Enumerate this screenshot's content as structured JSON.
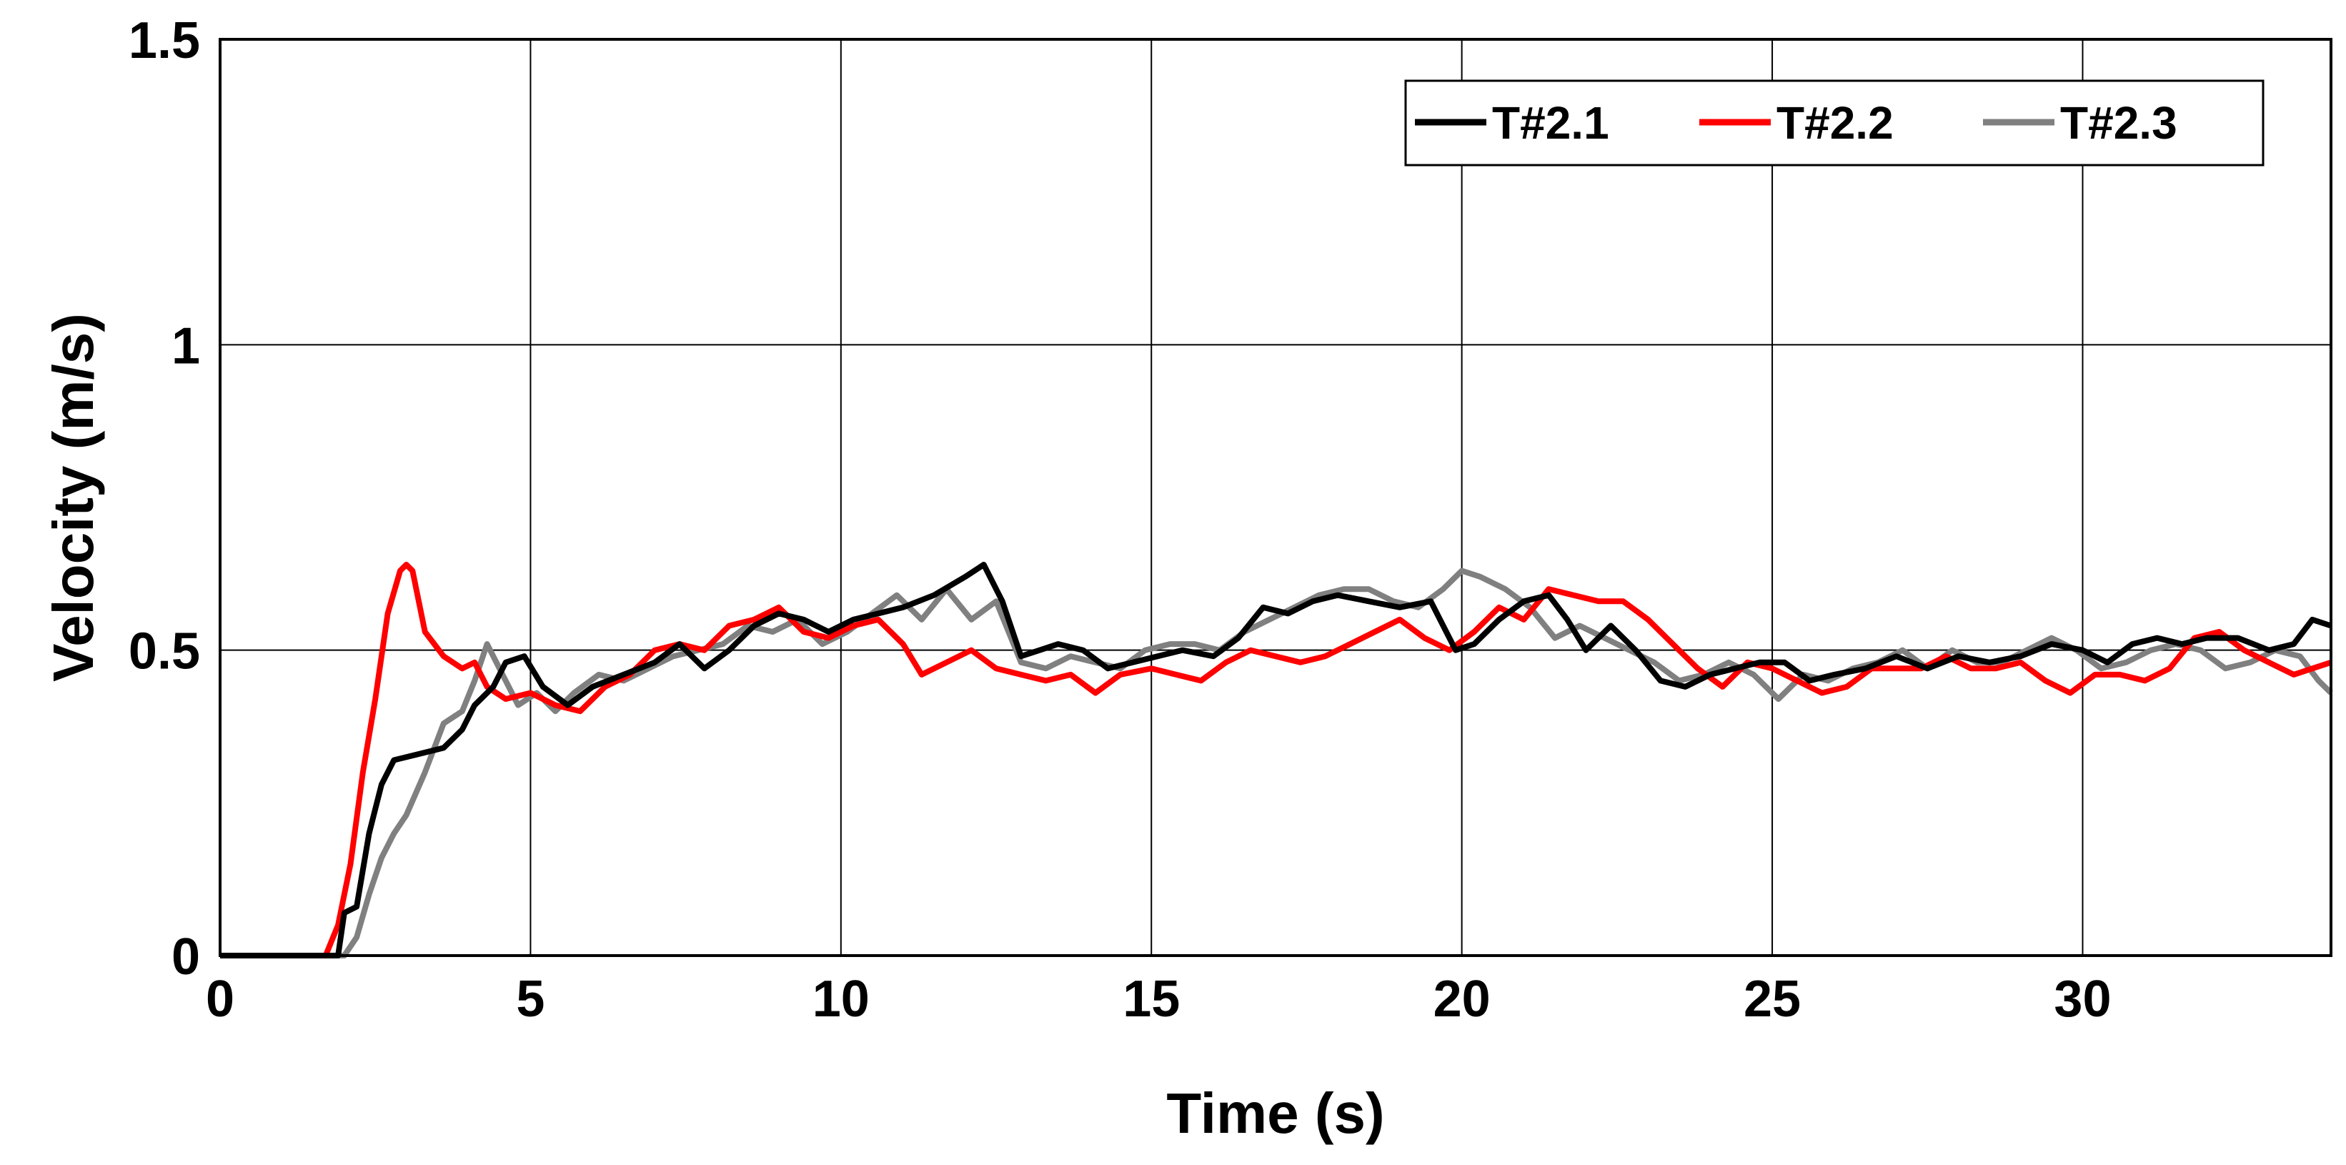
{
  "chart_data": {
    "type": "line",
    "xlabel": "Time (s)",
    "ylabel": "Velocity (m/s)",
    "xlim": [
      0,
      34
    ],
    "ylim": [
      0,
      1.5
    ],
    "xticks": [
      0,
      5,
      10,
      15,
      20,
      25,
      30
    ],
    "yticks": [
      0,
      0.5,
      1,
      1.5
    ],
    "ytick_labels": [
      "0",
      "0.5",
      "1",
      "1.5"
    ],
    "grid": true,
    "legend_position": "top-right",
    "series": [
      {
        "name": "T#2.1",
        "color": "#000000",
        "points": [
          [
            0,
            0
          ],
          [
            1.9,
            0
          ],
          [
            2.0,
            0.07
          ],
          [
            2.2,
            0.08
          ],
          [
            2.4,
            0.2
          ],
          [
            2.6,
            0.28
          ],
          [
            2.8,
            0.32
          ],
          [
            3.2,
            0.33
          ],
          [
            3.6,
            0.34
          ],
          [
            3.9,
            0.37
          ],
          [
            4.1,
            0.41
          ],
          [
            4.4,
            0.44
          ],
          [
            4.6,
            0.48
          ],
          [
            4.9,
            0.49
          ],
          [
            5.2,
            0.44
          ],
          [
            5.6,
            0.41
          ],
          [
            6.0,
            0.44
          ],
          [
            6.5,
            0.46
          ],
          [
            7.0,
            0.48
          ],
          [
            7.4,
            0.51
          ],
          [
            7.8,
            0.47
          ],
          [
            8.2,
            0.5
          ],
          [
            8.6,
            0.54
          ],
          [
            9.0,
            0.56
          ],
          [
            9.4,
            0.55
          ],
          [
            9.8,
            0.53
          ],
          [
            10.2,
            0.55
          ],
          [
            10.6,
            0.56
          ],
          [
            11.0,
            0.57
          ],
          [
            11.5,
            0.59
          ],
          [
            12.0,
            0.62
          ],
          [
            12.3,
            0.64
          ],
          [
            12.6,
            0.58
          ],
          [
            12.9,
            0.49
          ],
          [
            13.2,
            0.5
          ],
          [
            13.5,
            0.51
          ],
          [
            13.9,
            0.5
          ],
          [
            14.3,
            0.47
          ],
          [
            14.7,
            0.48
          ],
          [
            15.1,
            0.49
          ],
          [
            15.5,
            0.5
          ],
          [
            16.0,
            0.49
          ],
          [
            16.4,
            0.52
          ],
          [
            16.8,
            0.57
          ],
          [
            17.2,
            0.56
          ],
          [
            17.6,
            0.58
          ],
          [
            18.0,
            0.59
          ],
          [
            18.5,
            0.58
          ],
          [
            19.0,
            0.57
          ],
          [
            19.5,
            0.58
          ],
          [
            19.9,
            0.5
          ],
          [
            20.2,
            0.51
          ],
          [
            20.6,
            0.55
          ],
          [
            21.0,
            0.58
          ],
          [
            21.4,
            0.59
          ],
          [
            21.7,
            0.55
          ],
          [
            22.0,
            0.5
          ],
          [
            22.4,
            0.54
          ],
          [
            22.8,
            0.5
          ],
          [
            23.2,
            0.45
          ],
          [
            23.6,
            0.44
          ],
          [
            24.0,
            0.46
          ],
          [
            24.4,
            0.47
          ],
          [
            24.8,
            0.48
          ],
          [
            25.2,
            0.48
          ],
          [
            25.6,
            0.45
          ],
          [
            26.0,
            0.46
          ],
          [
            26.5,
            0.47
          ],
          [
            27.0,
            0.49
          ],
          [
            27.5,
            0.47
          ],
          [
            28.0,
            0.49
          ],
          [
            28.5,
            0.48
          ],
          [
            29.0,
            0.49
          ],
          [
            29.5,
            0.51
          ],
          [
            30.0,
            0.5
          ],
          [
            30.4,
            0.48
          ],
          [
            30.8,
            0.51
          ],
          [
            31.2,
            0.52
          ],
          [
            31.6,
            0.51
          ],
          [
            32.0,
            0.52
          ],
          [
            32.5,
            0.52
          ],
          [
            33.0,
            0.5
          ],
          [
            33.4,
            0.51
          ],
          [
            33.7,
            0.55
          ],
          [
            34.0,
            0.54
          ]
        ]
      },
      {
        "name": "T#2.2",
        "color": "#ff0000",
        "points": [
          [
            0,
            0
          ],
          [
            1.7,
            0
          ],
          [
            1.9,
            0.05
          ],
          [
            2.1,
            0.15
          ],
          [
            2.3,
            0.3
          ],
          [
            2.5,
            0.42
          ],
          [
            2.7,
            0.56
          ],
          [
            2.9,
            0.63
          ],
          [
            3.0,
            0.64
          ],
          [
            3.1,
            0.63
          ],
          [
            3.3,
            0.53
          ],
          [
            3.6,
            0.49
          ],
          [
            3.9,
            0.47
          ],
          [
            4.1,
            0.48
          ],
          [
            4.3,
            0.44
          ],
          [
            4.6,
            0.42
          ],
          [
            5.0,
            0.43
          ],
          [
            5.4,
            0.41
          ],
          [
            5.8,
            0.4
          ],
          [
            6.2,
            0.44
          ],
          [
            6.6,
            0.46
          ],
          [
            7.0,
            0.5
          ],
          [
            7.4,
            0.51
          ],
          [
            7.8,
            0.5
          ],
          [
            8.2,
            0.54
          ],
          [
            8.6,
            0.55
          ],
          [
            9.0,
            0.57
          ],
          [
            9.4,
            0.53
          ],
          [
            9.8,
            0.52
          ],
          [
            10.2,
            0.54
          ],
          [
            10.6,
            0.55
          ],
          [
            11.0,
            0.51
          ],
          [
            11.3,
            0.46
          ],
          [
            11.7,
            0.48
          ],
          [
            12.1,
            0.5
          ],
          [
            12.5,
            0.47
          ],
          [
            12.9,
            0.46
          ],
          [
            13.3,
            0.45
          ],
          [
            13.7,
            0.46
          ],
          [
            14.1,
            0.43
          ],
          [
            14.5,
            0.46
          ],
          [
            15.0,
            0.47
          ],
          [
            15.4,
            0.46
          ],
          [
            15.8,
            0.45
          ],
          [
            16.2,
            0.48
          ],
          [
            16.6,
            0.5
          ],
          [
            17.0,
            0.49
          ],
          [
            17.4,
            0.48
          ],
          [
            17.8,
            0.49
          ],
          [
            18.2,
            0.51
          ],
          [
            18.6,
            0.53
          ],
          [
            19.0,
            0.55
          ],
          [
            19.4,
            0.52
          ],
          [
            19.8,
            0.5
          ],
          [
            20.2,
            0.53
          ],
          [
            20.6,
            0.57
          ],
          [
            21.0,
            0.55
          ],
          [
            21.4,
            0.6
          ],
          [
            21.8,
            0.59
          ],
          [
            22.2,
            0.58
          ],
          [
            22.6,
            0.58
          ],
          [
            23.0,
            0.55
          ],
          [
            23.4,
            0.51
          ],
          [
            23.8,
            0.47
          ],
          [
            24.2,
            0.44
          ],
          [
            24.6,
            0.48
          ],
          [
            25.0,
            0.47
          ],
          [
            25.4,
            0.45
          ],
          [
            25.8,
            0.43
          ],
          [
            26.2,
            0.44
          ],
          [
            26.6,
            0.47
          ],
          [
            27.0,
            0.47
          ],
          [
            27.4,
            0.47
          ],
          [
            27.8,
            0.49
          ],
          [
            28.2,
            0.47
          ],
          [
            28.6,
            0.47
          ],
          [
            29.0,
            0.48
          ],
          [
            29.4,
            0.45
          ],
          [
            29.8,
            0.43
          ],
          [
            30.2,
            0.46
          ],
          [
            30.6,
            0.46
          ],
          [
            31.0,
            0.45
          ],
          [
            31.4,
            0.47
          ],
          [
            31.8,
            0.52
          ],
          [
            32.2,
            0.53
          ],
          [
            32.6,
            0.5
          ],
          [
            33.0,
            0.48
          ],
          [
            33.4,
            0.46
          ],
          [
            33.7,
            0.47
          ],
          [
            34.0,
            0.48
          ]
        ]
      },
      {
        "name": "T#2.3",
        "color": "#808080",
        "points": [
          [
            0,
            0
          ],
          [
            2.0,
            0
          ],
          [
            2.2,
            0.03
          ],
          [
            2.4,
            0.1
          ],
          [
            2.6,
            0.16
          ],
          [
            2.8,
            0.2
          ],
          [
            3.0,
            0.23
          ],
          [
            3.3,
            0.3
          ],
          [
            3.6,
            0.38
          ],
          [
            3.9,
            0.4
          ],
          [
            4.1,
            0.45
          ],
          [
            4.3,
            0.51
          ],
          [
            4.5,
            0.47
          ],
          [
            4.8,
            0.41
          ],
          [
            5.1,
            0.43
          ],
          [
            5.4,
            0.4
          ],
          [
            5.7,
            0.43
          ],
          [
            6.1,
            0.46
          ],
          [
            6.5,
            0.45
          ],
          [
            6.9,
            0.47
          ],
          [
            7.3,
            0.49
          ],
          [
            7.7,
            0.5
          ],
          [
            8.1,
            0.51
          ],
          [
            8.5,
            0.54
          ],
          [
            8.9,
            0.53
          ],
          [
            9.3,
            0.55
          ],
          [
            9.7,
            0.51
          ],
          [
            10.1,
            0.53
          ],
          [
            10.5,
            0.56
          ],
          [
            10.9,
            0.59
          ],
          [
            11.3,
            0.55
          ],
          [
            11.7,
            0.6
          ],
          [
            12.1,
            0.55
          ],
          [
            12.5,
            0.58
          ],
          [
            12.9,
            0.48
          ],
          [
            13.3,
            0.47
          ],
          [
            13.7,
            0.49
          ],
          [
            14.1,
            0.48
          ],
          [
            14.5,
            0.47
          ],
          [
            14.9,
            0.5
          ],
          [
            15.3,
            0.51
          ],
          [
            15.7,
            0.51
          ],
          [
            16.1,
            0.5
          ],
          [
            16.5,
            0.53
          ],
          [
            16.9,
            0.55
          ],
          [
            17.3,
            0.57
          ],
          [
            17.7,
            0.59
          ],
          [
            18.1,
            0.6
          ],
          [
            18.5,
            0.6
          ],
          [
            18.9,
            0.58
          ],
          [
            19.3,
            0.57
          ],
          [
            19.7,
            0.6
          ],
          [
            20.0,
            0.63
          ],
          [
            20.3,
            0.62
          ],
          [
            20.7,
            0.6
          ],
          [
            21.1,
            0.57
          ],
          [
            21.5,
            0.52
          ],
          [
            21.9,
            0.54
          ],
          [
            22.3,
            0.52
          ],
          [
            22.7,
            0.5
          ],
          [
            23.1,
            0.48
          ],
          [
            23.5,
            0.45
          ],
          [
            23.9,
            0.46
          ],
          [
            24.3,
            0.48
          ],
          [
            24.7,
            0.46
          ],
          [
            25.1,
            0.42
          ],
          [
            25.5,
            0.46
          ],
          [
            25.9,
            0.45
          ],
          [
            26.3,
            0.47
          ],
          [
            26.7,
            0.48
          ],
          [
            27.1,
            0.5
          ],
          [
            27.5,
            0.47
          ],
          [
            27.9,
            0.5
          ],
          [
            28.3,
            0.48
          ],
          [
            28.7,
            0.48
          ],
          [
            29.1,
            0.5
          ],
          [
            29.5,
            0.52
          ],
          [
            29.9,
            0.5
          ],
          [
            30.3,
            0.47
          ],
          [
            30.7,
            0.48
          ],
          [
            31.1,
            0.5
          ],
          [
            31.5,
            0.51
          ],
          [
            31.9,
            0.5
          ],
          [
            32.3,
            0.47
          ],
          [
            32.7,
            0.48
          ],
          [
            33.1,
            0.5
          ],
          [
            33.5,
            0.49
          ],
          [
            33.8,
            0.45
          ],
          [
            34.0,
            0.43
          ]
        ]
      }
    ]
  }
}
